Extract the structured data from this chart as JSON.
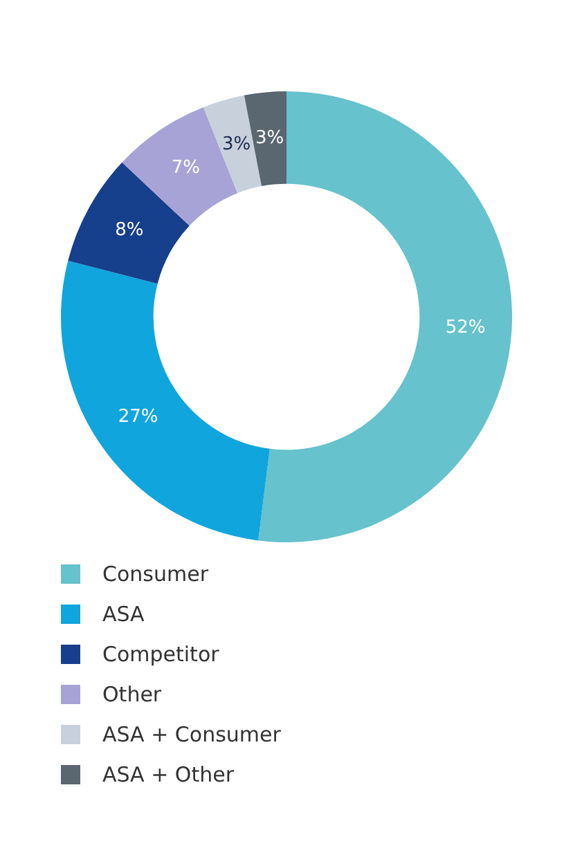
{
  "chart_data": {
    "type": "donut",
    "categories": [
      "Consumer",
      "ASA",
      "Competitor",
      "Other",
      "ASA + Consumer",
      "ASA + Other"
    ],
    "values": [
      52,
      27,
      8,
      7,
      3,
      3
    ],
    "colors": [
      "#66c2cc",
      "#10a5dd",
      "#163f8c",
      "#a7a3d6",
      "#c8d0dc",
      "#5a6670"
    ],
    "value_labels": [
      "52%",
      "27%",
      "8%",
      "7%",
      "3%",
      "3%"
    ],
    "legend": "bottom"
  }
}
